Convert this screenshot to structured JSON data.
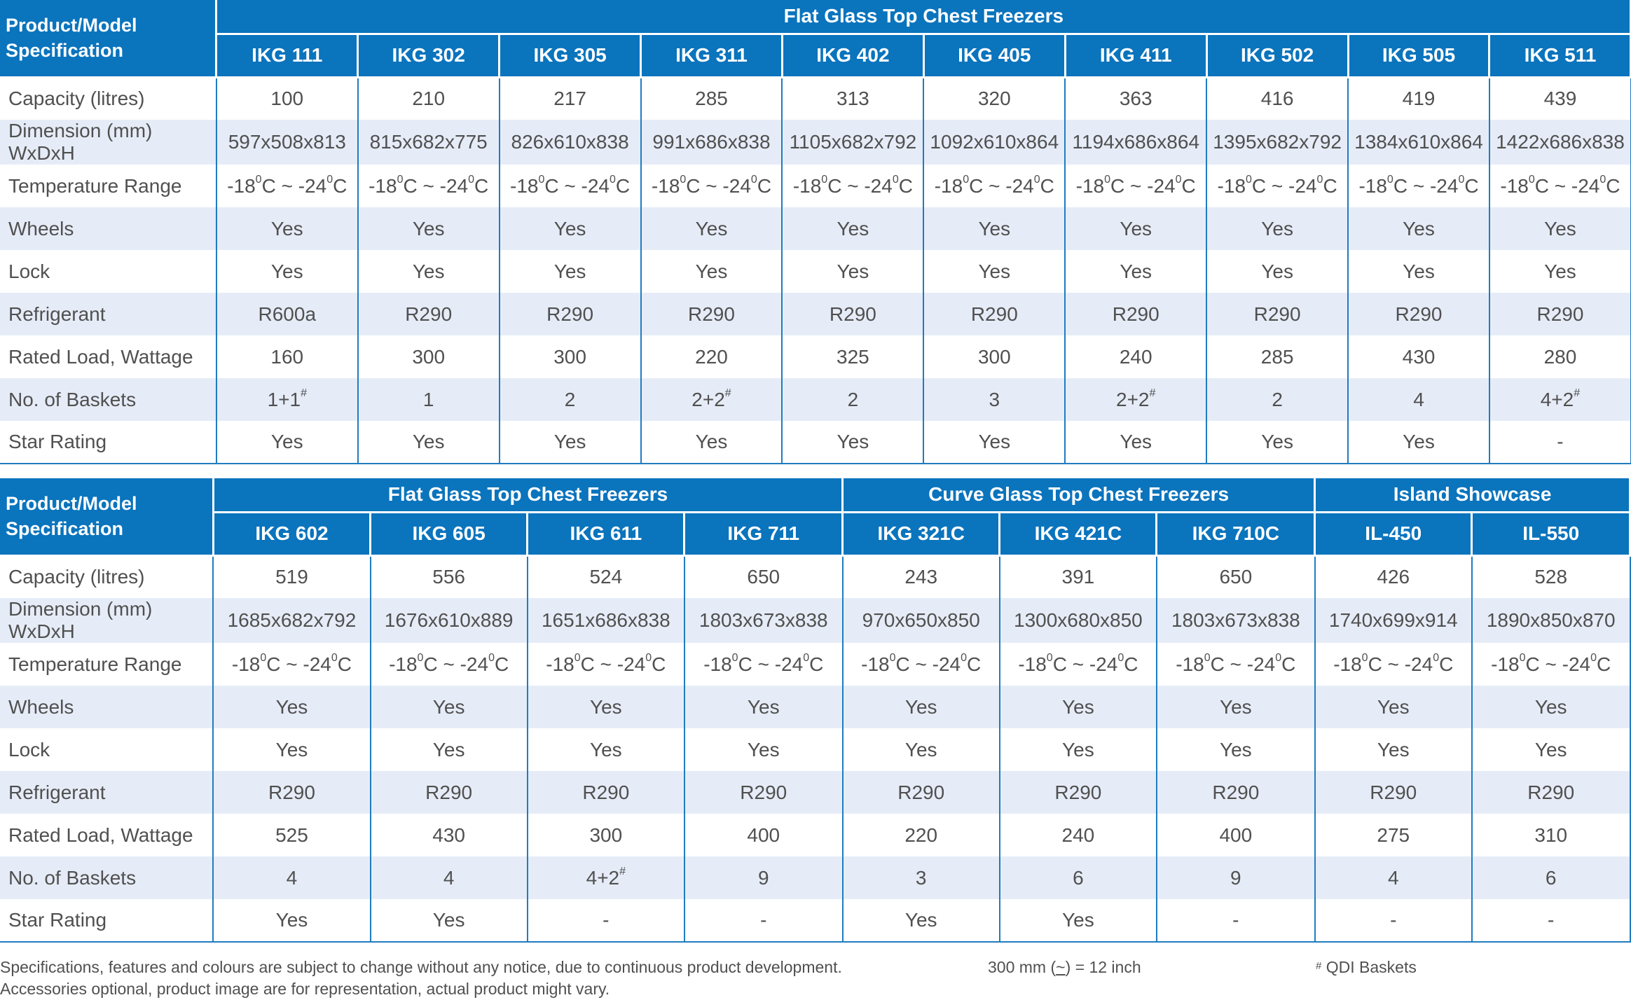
{
  "corner_label": "Product/Model Specification",
  "row_labels": [
    "Capacity (litres)",
    "Dimension (mm) WxDxH",
    "Temperature Range",
    "Wheels",
    "Lock",
    "Refrigerant",
    "Rated Load, Wattage",
    "No. of Baskets",
    "Star Rating"
  ],
  "temp_range": {
    "a": "-18",
    "sup": "0",
    "b": "C ~ -24",
    "c": "C"
  },
  "basket_mark": "#",
  "table1": {
    "group_title": "Flat Glass Top Chest Freezers",
    "models": [
      "IKG 111",
      "IKG 302",
      "IKG 305",
      "IKG 311",
      "IKG 402",
      "IKG 405",
      "IKG 411",
      "IKG 502",
      "IKG 505",
      "IKG 511"
    ],
    "capacity": [
      "100",
      "210",
      "217",
      "285",
      "313",
      "320",
      "363",
      "416",
      "419",
      "439"
    ],
    "dimension": [
      "597x508x813",
      "815x682x775",
      "826x610x838",
      "991x686x838",
      "1105x682x792",
      "1092x610x864",
      "1194x686x864",
      "1395x682x792",
      "1384x610x864",
      "1422x686x838"
    ],
    "wheels": [
      "Yes",
      "Yes",
      "Yes",
      "Yes",
      "Yes",
      "Yes",
      "Yes",
      "Yes",
      "Yes",
      "Yes"
    ],
    "lock": [
      "Yes",
      "Yes",
      "Yes",
      "Yes",
      "Yes",
      "Yes",
      "Yes",
      "Yes",
      "Yes",
      "Yes"
    ],
    "refrigerant": [
      "R600a",
      "R290",
      "R290",
      "R290",
      "R290",
      "R290",
      "R290",
      "R290",
      "R290",
      "R290"
    ],
    "wattage": [
      "160",
      "300",
      "300",
      "220",
      "325",
      "300",
      "240",
      "285",
      "430",
      "280"
    ],
    "baskets": [
      "1+1",
      "1",
      "2",
      "2+2",
      "2",
      "3",
      "2+2",
      "2",
      "4",
      "4+2"
    ],
    "baskets_qdi": [
      true,
      false,
      false,
      true,
      false,
      false,
      true,
      false,
      false,
      true
    ],
    "star": [
      "Yes",
      "Yes",
      "Yes",
      "Yes",
      "Yes",
      "Yes",
      "Yes",
      "Yes",
      "Yes",
      "-"
    ]
  },
  "table2": {
    "groups": [
      {
        "title": "Flat Glass Top Chest Freezers",
        "span": 4
      },
      {
        "title": "Curve Glass Top Chest Freezers",
        "span": 3
      },
      {
        "title": "Island Showcase",
        "span": 2
      }
    ],
    "models": [
      "IKG 602",
      "IKG 605",
      "IKG 611",
      "IKG 711",
      "IKG 321C",
      "IKG 421C",
      "IKG 710C",
      "IL-450",
      "IL-550"
    ],
    "capacity": [
      "519",
      "556",
      "524",
      "650",
      "243",
      "391",
      "650",
      "426",
      "528"
    ],
    "dimension": [
      "1685x682x792",
      "1676x610x889",
      "1651x686x838",
      "1803x673x838",
      "970x650x850",
      "1300x680x850",
      "1803x673x838",
      "1740x699x914",
      "1890x850x870"
    ],
    "wheels": [
      "Yes",
      "Yes",
      "Yes",
      "Yes",
      "Yes",
      "Yes",
      "Yes",
      "Yes",
      "Yes"
    ],
    "lock": [
      "Yes",
      "Yes",
      "Yes",
      "Yes",
      "Yes",
      "Yes",
      "Yes",
      "Yes",
      "Yes"
    ],
    "refrigerant": [
      "R290",
      "R290",
      "R290",
      "R290",
      "R290",
      "R290",
      "R290",
      "R290",
      "R290"
    ],
    "wattage": [
      "525",
      "430",
      "300",
      "400",
      "220",
      "240",
      "400",
      "275",
      "310"
    ],
    "baskets": [
      "4",
      "4",
      "4+2",
      "9",
      "3",
      "6",
      "9",
      "4",
      "6"
    ],
    "baskets_qdi": [
      false,
      false,
      true,
      false,
      false,
      false,
      false,
      false,
      false
    ],
    "star": [
      "Yes",
      "Yes",
      "-",
      "-",
      "Yes",
      "Yes",
      "-",
      "-",
      "-"
    ]
  },
  "footer": {
    "disclaimer_line1": "Specifications, features and colours are subject to change without any notice, due to continuous product development.",
    "disclaimer_line2": "Accessories optional, product image are for representation, actual product might vary.",
    "conversion_a": "300 mm (",
    "conversion_approx": "~",
    "conversion_b": ") = 12 inch",
    "qdi_mark": "#",
    "qdi_note": "QDI Baskets"
  }
}
